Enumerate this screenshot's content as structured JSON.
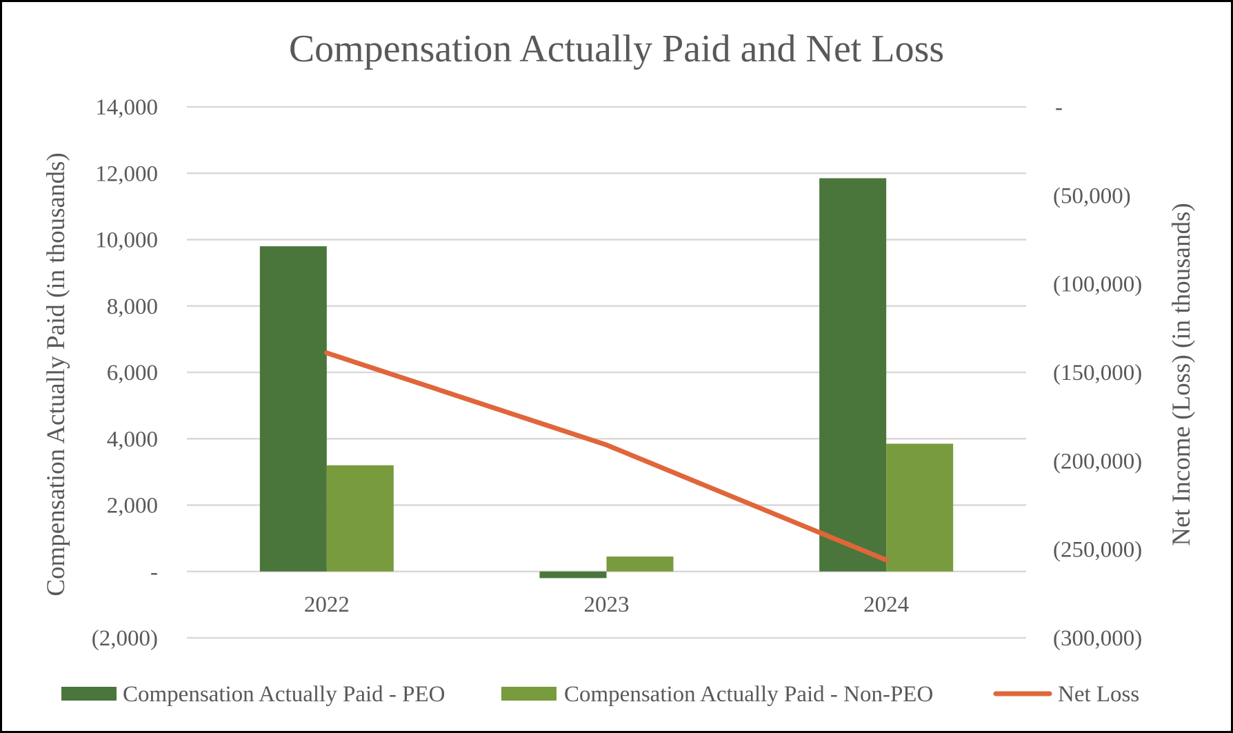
{
  "chart_data": {
    "type": "bar",
    "title": "Compensation Actually Paid and Net Loss",
    "categories": [
      "2022",
      "2023",
      "2024"
    ],
    "ylabel": "Compensation Actually Paid (in thousands)",
    "y2label": "Net Income (Loss) (in thousands)",
    "ylim": [
      -2000,
      14000
    ],
    "y2lim": [
      -300000,
      0
    ],
    "yticks": [
      -2000,
      0,
      2000,
      4000,
      6000,
      8000,
      10000,
      12000,
      14000
    ],
    "ytick_labels": [
      "(2,000)",
      "-",
      "2,000",
      "4,000",
      "6,000",
      "8,000",
      "10,000",
      "12,000",
      "14,000"
    ],
    "y2ticks": [
      -300000,
      -250000,
      -200000,
      -150000,
      -100000,
      -50000,
      0
    ],
    "y2tick_labels": [
      "(300,000)",
      "(250,000)",
      "(200,000)",
      "(150,000)",
      "(100,000)",
      "(50,000)",
      "-"
    ],
    "grid": true,
    "legend_position": "bottom",
    "series": [
      {
        "name": "Compensation Actually Paid - PEO",
        "type": "bar",
        "axis": "left",
        "color": "#4a763c",
        "values": [
          9800,
          -200,
          11850
        ]
      },
      {
        "name": "Compensation Actually Paid - Non-PEO",
        "type": "bar",
        "axis": "left",
        "color": "#789b3e",
        "values": [
          3200,
          450,
          3850
        ]
      },
      {
        "name": "Net Loss",
        "type": "line",
        "axis": "right",
        "color": "#e0663a",
        "values": [
          -139000,
          -191000,
          -256000
        ]
      }
    ]
  }
}
